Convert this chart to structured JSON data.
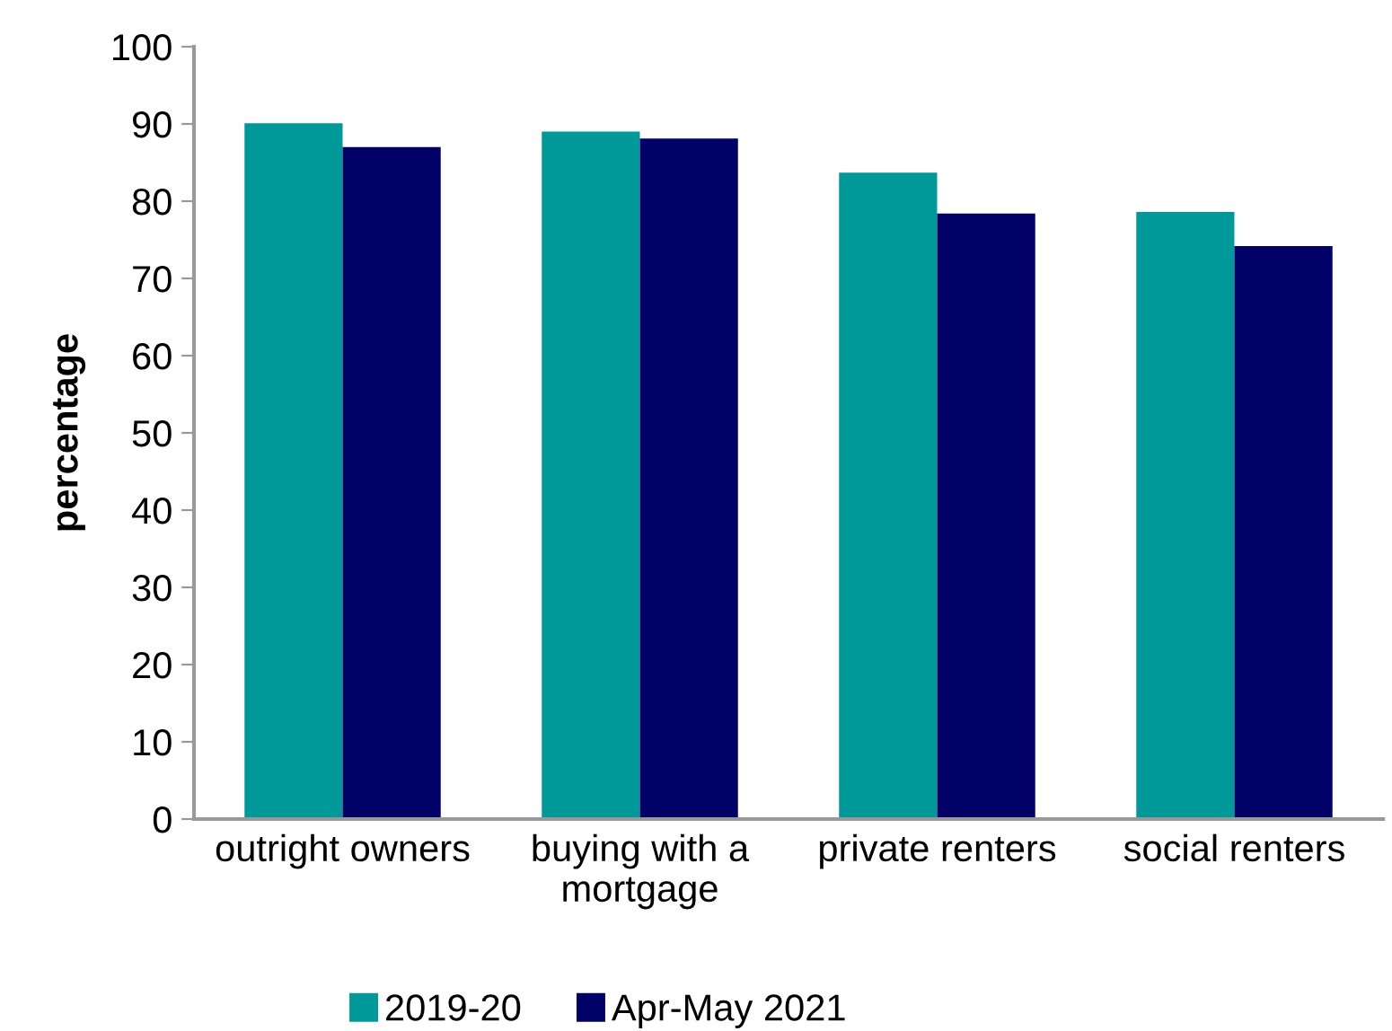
{
  "chart_data": {
    "type": "bar",
    "ylabel": "percentage",
    "categories": [
      "outright owners",
      "buying with a\nmortgage",
      "private renters",
      "social renters"
    ],
    "series": [
      {
        "name": "2019-20",
        "color": "#009999",
        "values": [
          90.1,
          89.0,
          83.7,
          78.6
        ]
      },
      {
        "name": "Apr-May 2021",
        "color": "#000066",
        "values": [
          87.0,
          88.1,
          78.4,
          74.2
        ]
      }
    ],
    "ylim": [
      0,
      100
    ],
    "yticks": [
      0,
      10,
      20,
      30,
      40,
      50,
      60,
      70,
      80,
      90,
      100
    ],
    "grid": false,
    "legend": "bottom"
  }
}
